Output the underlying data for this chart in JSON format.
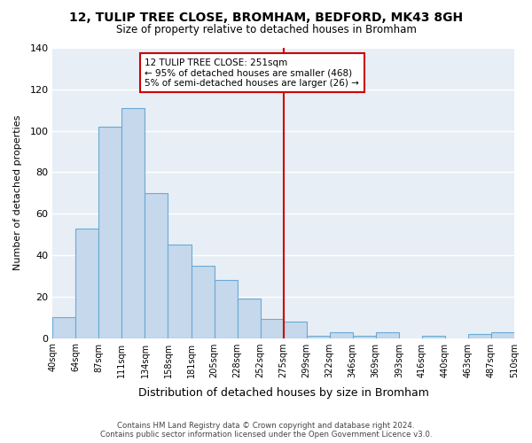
{
  "title": "12, TULIP TREE CLOSE, BROMHAM, BEDFORD, MK43 8GH",
  "subtitle": "Size of property relative to detached houses in Bromham",
  "xlabel": "Distribution of detached houses by size in Bromham",
  "ylabel": "Number of detached properties",
  "bin_labels": [
    "40sqm",
    "64sqm",
    "87sqm",
    "111sqm",
    "134sqm",
    "158sqm",
    "181sqm",
    "205sqm",
    "228sqm",
    "252sqm",
    "275sqm",
    "299sqm",
    "322sqm",
    "346sqm",
    "369sqm",
    "393sqm",
    "416sqm",
    "440sqm",
    "463sqm",
    "487sqm",
    "510sqm"
  ],
  "bar_heights": [
    10,
    53,
    102,
    111,
    70,
    45,
    35,
    28,
    19,
    9,
    8,
    1,
    3,
    1,
    3,
    0,
    1,
    0,
    2,
    3
  ],
  "bar_color": "#c5d8ec",
  "bar_edge_color": "#6aaad4",
  "property_line_x": 9.5,
  "property_line_color": "#cc0000",
  "annotation_line1": "12 TULIP TREE CLOSE: 251sqm",
  "annotation_line2": "← 95% of detached houses are smaller (468)",
  "annotation_line3": "5% of semi-detached houses are larger (26) →",
  "annotation_box_edgecolor": "#cc0000",
  "ylim": [
    0,
    140
  ],
  "yticks": [
    0,
    20,
    40,
    60,
    80,
    100,
    120,
    140
  ],
  "background_color": "#e8eef5",
  "footer_line1": "Contains HM Land Registry data © Crown copyright and database right 2024.",
  "footer_line2": "Contains public sector information licensed under the Open Government Licence v3.0."
}
